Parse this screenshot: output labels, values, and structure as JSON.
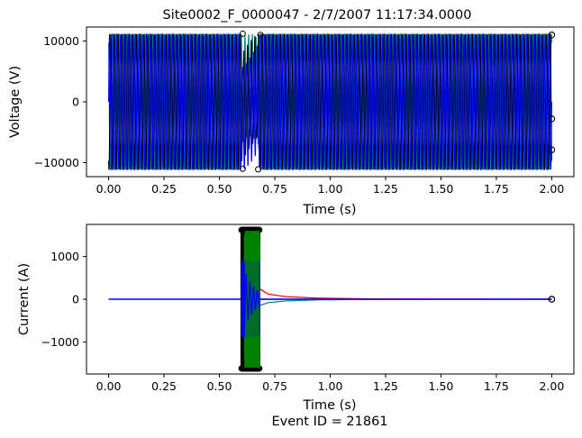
{
  "chart_data": [
    {
      "type": "line",
      "title": "Site0002_F_0000047 - 2/7/2007 11:17:34.0000",
      "xlabel": "Time (s)",
      "ylabel": "Voltage (V)",
      "xlim": [
        -0.1,
        2.1
      ],
      "ylim": [
        -12300,
        12300
      ],
      "xticks": [
        0.0,
        0.25,
        0.5,
        0.75,
        1.0,
        1.25,
        1.5,
        1.75,
        2.0
      ],
      "xtick_labels": [
        "0.00",
        "0.25",
        "0.50",
        "0.75",
        "1.00",
        "1.25",
        "1.50",
        "1.75",
        "2.00"
      ],
      "yticks": [
        -10000,
        0,
        10000
      ],
      "ytick_labels": [
        "−10000",
        "0",
        "10000"
      ],
      "series": [
        {
          "color": "#008080",
          "pattern": "sinusoid",
          "frequency_hz": 60,
          "amplitude": 11200,
          "phase_deg": 120,
          "x_range": [
            0.0,
            2.0
          ]
        },
        {
          "color": "#000000",
          "pattern": "sinusoid",
          "frequency_hz": 60,
          "amplitude": 11200,
          "phase_deg": 240,
          "x_range": [
            0.0,
            2.0
          ]
        },
        {
          "color": "#0000ff",
          "pattern": "sinusoid",
          "frequency_hz": 60,
          "amplitude": 11200,
          "phase_deg": 0,
          "x_range": [
            0.0,
            2.0
          ]
        }
      ],
      "fault_window": [
        0.6,
        0.68
      ],
      "end_markers": [
        {
          "x": 2.0,
          "y": 11000
        },
        {
          "x": 2.0,
          "y": -2800
        },
        {
          "x": 2.0,
          "y": -7900
        }
      ],
      "grid": false
    },
    {
      "type": "line",
      "title": "",
      "xlabel": "Time (s)",
      "ylabel": "Current (A)",
      "xlim": [
        -0.1,
        2.1
      ],
      "ylim": [
        -1750,
        1750
      ],
      "xticks": [
        0.0,
        0.25,
        0.5,
        0.75,
        1.0,
        1.25,
        1.5,
        1.75,
        2.0
      ],
      "xtick_labels": [
        "0.00",
        "0.25",
        "0.50",
        "0.75",
        "1.00",
        "1.25",
        "1.50",
        "1.75",
        "2.00"
      ],
      "yticks": [
        -1000,
        0,
        1000
      ],
      "ytick_labels": [
        "−1000",
        "0",
        "1000"
      ],
      "series": [
        {
          "color": "#ff0000",
          "pattern": "fault-burst",
          "x_range": [
            0.6,
            0.68
          ],
          "amplitude": 1600,
          "decay_tail": [
            [
              0.68,
              250
            ],
            [
              0.72,
              120
            ],
            [
              0.8,
              60
            ],
            [
              0.95,
              25
            ],
            [
              1.2,
              8
            ],
            [
              1.5,
              3
            ],
            [
              2.0,
              0
            ]
          ]
        },
        {
          "color": "#008080",
          "pattern": "fault-burst",
          "x_range": [
            0.6,
            0.68
          ],
          "amplitude": 1600,
          "decay_tail": [
            [
              0.68,
              -150
            ],
            [
              0.72,
              -80
            ],
            [
              0.8,
              -40
            ],
            [
              0.95,
              -15
            ],
            [
              1.2,
              -5
            ],
            [
              2.0,
              0
            ]
          ]
        },
        {
          "color": "#000000",
          "pattern": "fault-burst",
          "x_range": [
            0.6,
            0.68
          ],
          "amplitude": 1620,
          "marker": "circle"
        },
        {
          "color": "#008000",
          "pattern": "fault-burst",
          "x_range": [
            0.615,
            0.68
          ],
          "amplitude": 1600
        },
        {
          "color": "#0000ff",
          "pattern": "fault-burst",
          "x_range": [
            0.6,
            0.68
          ],
          "amplitude": 900,
          "decay_tail": [
            [
              0.68,
              0
            ],
            [
              2.0,
              0
            ]
          ]
        }
      ],
      "baseline": {
        "x_range": [
          0.0,
          2.0
        ],
        "value": 0,
        "color": "#0000ff"
      },
      "end_markers": [
        {
          "x": 2.0,
          "y": 0
        },
        {
          "x": 2.0,
          "y": 0
        }
      ],
      "grid": false
    }
  ],
  "footer": {
    "text": "Event ID = 21861"
  }
}
